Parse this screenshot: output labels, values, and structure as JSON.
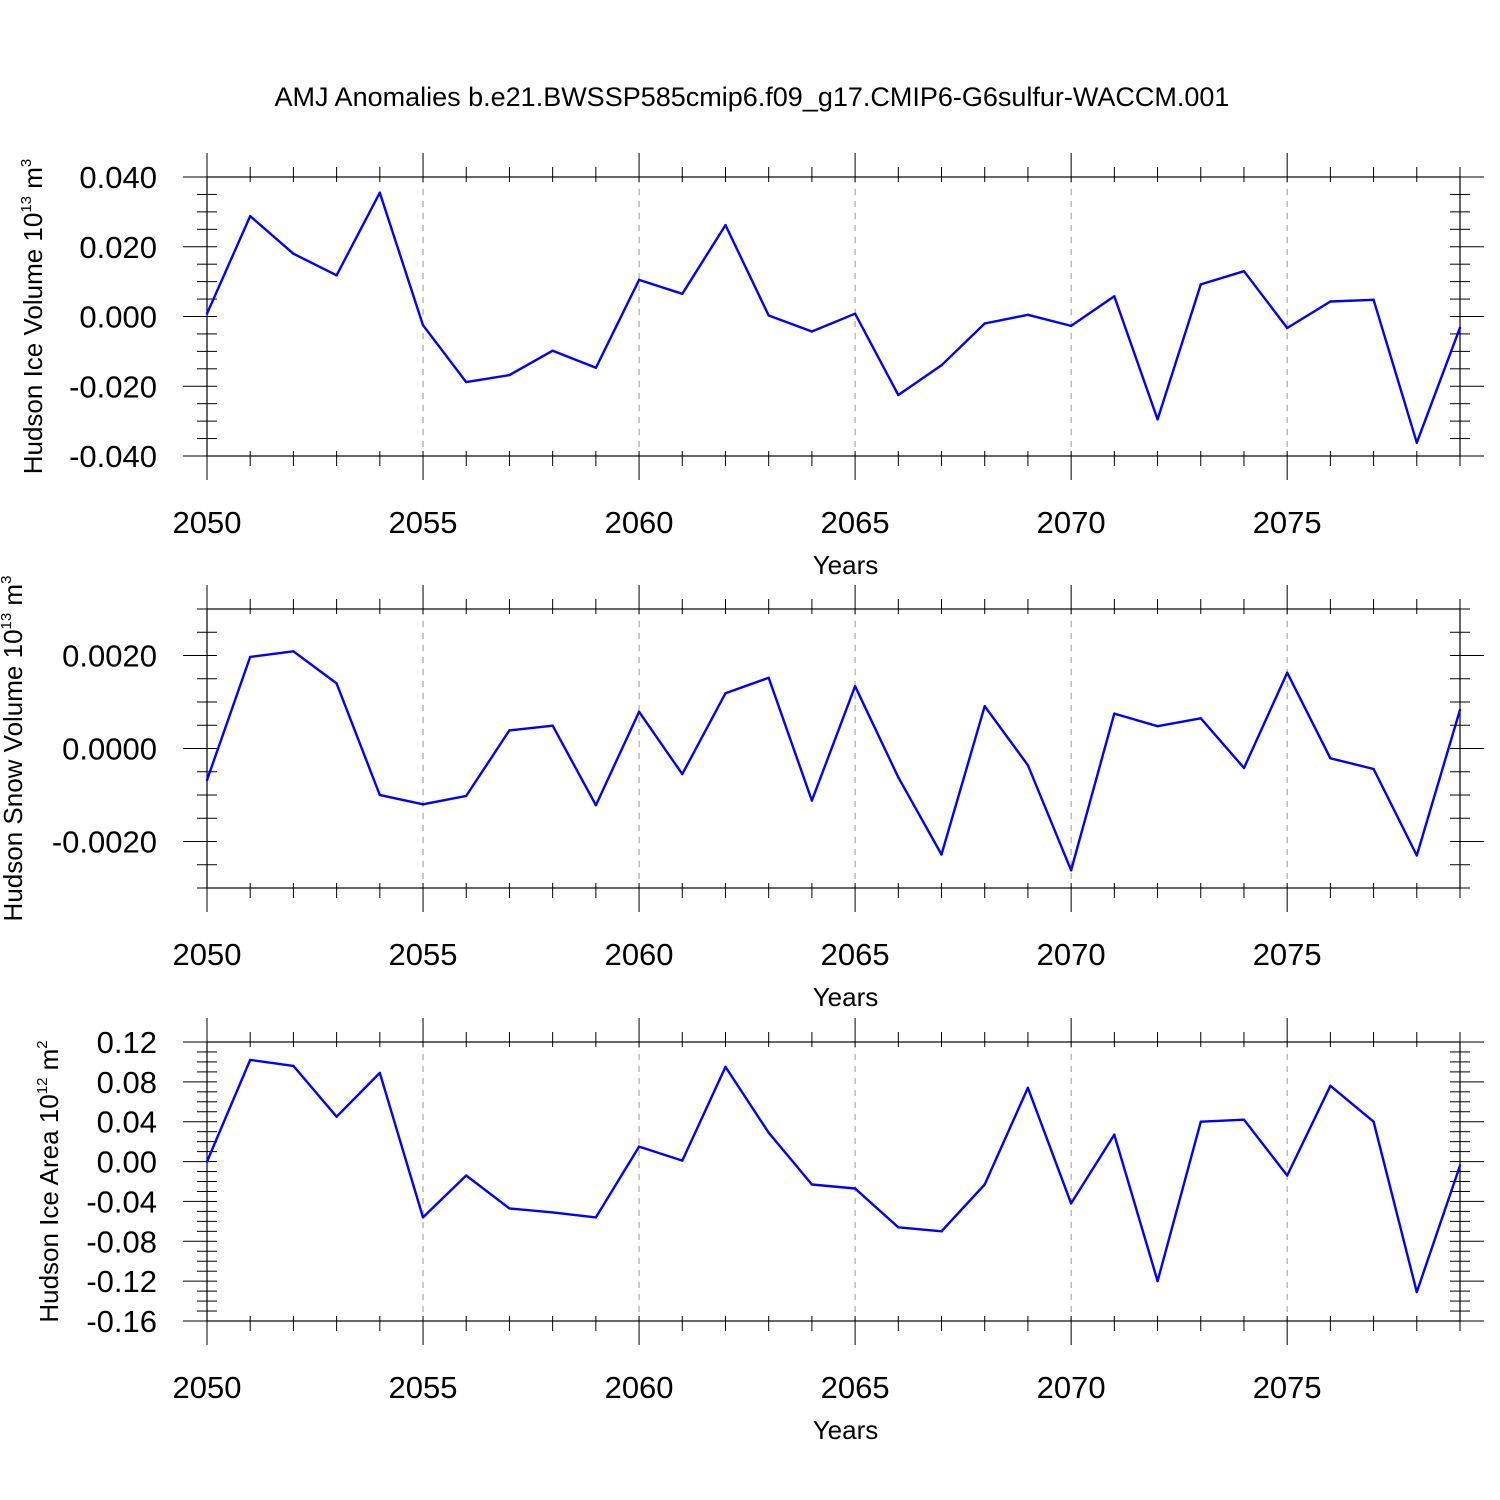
{
  "title": "AMJ Anomalies b.e21.BWSSP585cmip6.f09_g17.CMIP6-G6sulfur-WACCM.001",
  "colors": {
    "line": "#0000ff",
    "frame": "#000000",
    "grid": "#999999"
  },
  "chart_data": [
    {
      "type": "line",
      "xlabel": "Years",
      "ylabel": {
        "text": "Hudson Ice Volume 10",
        "exp": "13",
        "unit": " m",
        "unit_exp": "3"
      },
      "xlim": [
        2050,
        2079
      ],
      "ylim": [
        -0.04,
        0.04
      ],
      "xticks": [
        "2050",
        "2055",
        "2060",
        "2065",
        "2070",
        "2075"
      ],
      "yticks": [
        {
          "value": 0.04,
          "label": "0.040"
        },
        {
          "value": 0.02,
          "label": "0.020"
        },
        {
          "value": 0.0,
          "label": "0.000"
        },
        {
          "value": -0.02,
          "label": "-0.020"
        },
        {
          "value": -0.04,
          "label": "-0.040"
        }
      ],
      "x": [
        2050,
        2051,
        2052,
        2053,
        2054,
        2055,
        2056,
        2057,
        2058,
        2059,
        2060,
        2061,
        2062,
        2063,
        2064,
        2065,
        2066,
        2067,
        2068,
        2069,
        2070,
        2071,
        2072,
        2073,
        2074,
        2075,
        2076,
        2077,
        2078,
        2079
      ],
      "values": [
        0.0008,
        0.0288,
        0.018,
        0.0118,
        0.0355,
        -0.0025,
        -0.0188,
        -0.0168,
        -0.0098,
        -0.0147,
        0.0105,
        0.0065,
        0.0262,
        0.0003,
        -0.0043,
        0.0008,
        -0.0225,
        -0.014,
        -0.002,
        0.0005,
        -0.0027,
        0.0058,
        -0.0295,
        0.0092,
        0.013,
        -0.0033,
        0.0043,
        0.0048,
        -0.0362,
        -0.0032
      ]
    },
    {
      "type": "line",
      "xlabel": "Years",
      "ylabel": {
        "text": "Hudson Snow Volume 10",
        "exp": "13",
        "unit": " m",
        "unit_exp": "3"
      },
      "xlim": [
        2050,
        2079
      ],
      "ylim": [
        -0.003,
        0.003
      ],
      "xticks": [
        "2050",
        "2055",
        "2060",
        "2065",
        "2070",
        "2075"
      ],
      "yticks": [
        {
          "value": 0.002,
          "label": "0.0020"
        },
        {
          "value": 0.0,
          "label": "0.0000"
        },
        {
          "value": -0.002,
          "label": "-0.0020"
        }
      ],
      "x": [
        2050,
        2051,
        2052,
        2053,
        2054,
        2055,
        2056,
        2057,
        2058,
        2059,
        2060,
        2061,
        2062,
        2063,
        2064,
        2065,
        2066,
        2067,
        2068,
        2069,
        2070,
        2071,
        2072,
        2073,
        2074,
        2075,
        2076,
        2077,
        2078,
        2079
      ],
      "values": [
        -0.00068,
        0.00197,
        0.00209,
        0.0014,
        -0.001,
        -0.0012,
        -0.00102,
        0.00039,
        0.00049,
        -0.00122,
        0.00079,
        -0.00055,
        0.00119,
        0.00152,
        -0.00112,
        0.00134,
        -0.00062,
        -0.00228,
        0.00091,
        -0.00036,
        -0.00262,
        0.00075,
        0.00048,
        0.00065,
        -0.00042,
        0.00163,
        -0.00021,
        -0.00044,
        -0.0023,
        0.00083
      ]
    },
    {
      "type": "line",
      "xlabel": "Years",
      "ylabel": {
        "text": "Hudson Ice Area 10",
        "exp": "12",
        "unit": " m",
        "unit_exp": "2"
      },
      "xlim": [
        2050,
        2079
      ],
      "ylim": [
        -0.16,
        0.12
      ],
      "xticks": [
        "2050",
        "2055",
        "2060",
        "2065",
        "2070",
        "2075"
      ],
      "yticks": [
        {
          "value": 0.12,
          "label": "0.12"
        },
        {
          "value": 0.08,
          "label": "0.08"
        },
        {
          "value": 0.04,
          "label": "0.04"
        },
        {
          "value": 0.0,
          "label": "0.00"
        },
        {
          "value": -0.04,
          "label": "-0.04"
        },
        {
          "value": -0.08,
          "label": "-0.08"
        },
        {
          "value": -0.12,
          "label": "-0.12"
        },
        {
          "value": -0.16,
          "label": "-0.16"
        }
      ],
      "x": [
        2050,
        2051,
        2052,
        2053,
        2054,
        2055,
        2056,
        2057,
        2058,
        2059,
        2060,
        2061,
        2062,
        2063,
        2064,
        2065,
        2066,
        2067,
        2068,
        2069,
        2070,
        2071,
        2072,
        2073,
        2074,
        2075,
        2076,
        2077,
        2078,
        2079
      ],
      "values": [
        0.0,
        0.102,
        0.096,
        0.045,
        0.089,
        -0.056,
        -0.014,
        -0.047,
        -0.051,
        -0.056,
        0.015,
        0.001,
        0.095,
        0.029,
        -0.023,
        -0.027,
        -0.066,
        -0.07,
        -0.023,
        0.074,
        -0.042,
        0.027,
        -0.12,
        0.04,
        0.042,
        -0.014,
        0.076,
        0.04,
        -0.131,
        -0.004
      ]
    }
  ]
}
